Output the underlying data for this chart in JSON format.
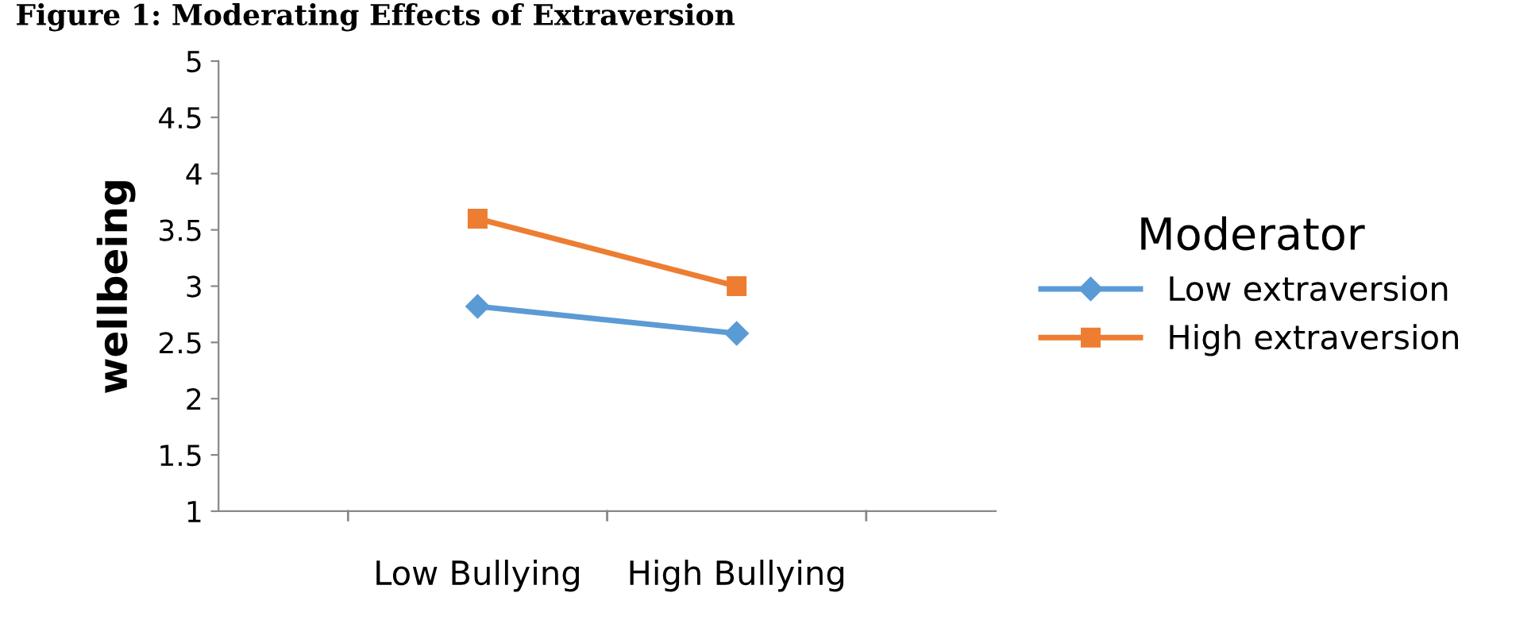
{
  "chart_data": {
    "type": "line",
    "title": "Figure 1: Moderating Effects of Extraversion",
    "ylabel": "wellbeing",
    "legend_title": "Moderator",
    "categories": [
      "Low Bullying",
      "High Bullying"
    ],
    "series": [
      {
        "name": "Low extraversion",
        "color": "#5b9bd5",
        "marker": "diamond",
        "values": [
          2.82,
          2.58
        ]
      },
      {
        "name": "High extraversion",
        "color": "#ed7d31",
        "marker": "square",
        "values": [
          3.6,
          3.0
        ]
      }
    ],
    "ylim": [
      1,
      5
    ],
    "yticks": [
      1,
      1.5,
      2,
      2.5,
      3,
      3.5,
      4,
      4.5,
      5
    ],
    "grid": false,
    "legend": "right",
    "line_style": "solid"
  }
}
